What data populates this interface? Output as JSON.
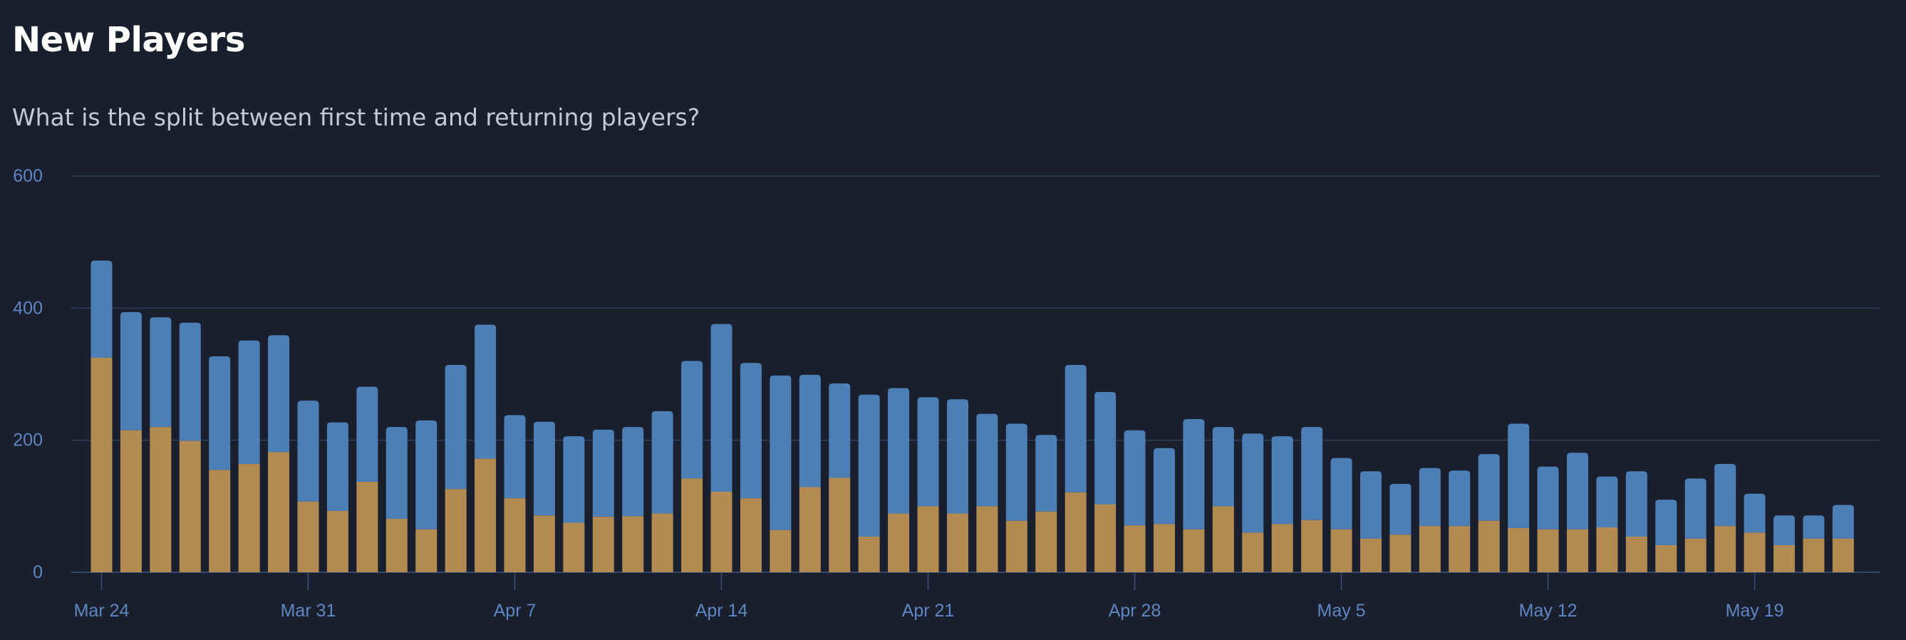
{
  "header": {
    "title": "New Players",
    "subtitle": "What is the split between first time and returning players?"
  },
  "colors": {
    "background": "#1a1f2e",
    "first_time": "#b38b52",
    "returning": "#4b7fb5",
    "gridline": "#2e3f5e",
    "axis_text": "#5e86c2"
  },
  "chart_data": {
    "type": "bar",
    "stacked": true,
    "title": "New Players",
    "subtitle": "What is the split between first time and returning players?",
    "xlabel": "",
    "ylabel": "",
    "ylim": [
      0,
      600
    ],
    "yticks": [
      0,
      200,
      400,
      600
    ],
    "grid": true,
    "x_tick_labels": [
      {
        "index": 0,
        "label": "Mar 24"
      },
      {
        "index": 7,
        "label": "Mar 31"
      },
      {
        "index": 14,
        "label": "Apr 7"
      },
      {
        "index": 21,
        "label": "Apr 14"
      },
      {
        "index": 28,
        "label": "Apr 21"
      },
      {
        "index": 35,
        "label": "Apr 28"
      },
      {
        "index": 42,
        "label": "May 5"
      },
      {
        "index": 49,
        "label": "May 12"
      },
      {
        "index": 56,
        "label": "May 19"
      }
    ],
    "series": [
      {
        "values": [
          325,
          215,
          220,
          199,
          155,
          164,
          182,
          107,
          93,
          137,
          81,
          65,
          126,
          172,
          112,
          86,
          75,
          84,
          85,
          89,
          142,
          122,
          112,
          64,
          129,
          143,
          54,
          89,
          100,
          89,
          100,
          78,
          92,
          121,
          103,
          71,
          73,
          65,
          100,
          60,
          73,
          79,
          65,
          51,
          57,
          70,
          70,
          78,
          67,
          65,
          65,
          68,
          54,
          41,
          51,
          70,
          60,
          41,
          51,
          51
        ]
      },
      {
        "values": [
          147,
          179,
          166,
          179,
          172,
          187,
          177,
          153,
          134,
          144,
          139,
          165,
          188,
          203,
          126,
          142,
          131,
          132,
          135,
          155,
          178,
          254,
          205,
          234,
          170,
          143,
          215,
          190,
          165,
          173,
          140,
          147,
          116,
          193,
          170,
          144,
          115,
          167,
          120,
          150,
          133,
          141,
          108,
          102,
          77,
          88,
          84,
          101,
          158,
          95,
          116,
          77,
          99,
          69,
          91,
          94,
          59,
          45,
          35,
          51
        ]
      }
    ]
  }
}
